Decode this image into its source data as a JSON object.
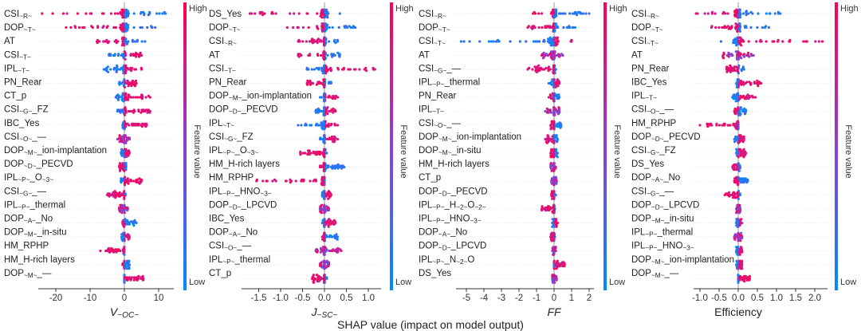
{
  "chart_data": {
    "type": "scatter",
    "subtype": "shap-beeswarm",
    "common_xlabel": "SHAP value (impact on model output)",
    "colorbar": {
      "title": "Feature value",
      "high": "High",
      "low": "Low",
      "high_color": "#ff0052",
      "mid_color": "#8c3fd6",
      "low_color": "#008bfb"
    },
    "panels": [
      {
        "xlabel": "V~OC~",
        "xlabel_italic": true,
        "xlim": [
          -26,
          14
        ],
        "ticks": [
          -20,
          -10,
          0,
          10
        ],
        "tick_labels": [
          "-20",
          "-10",
          "0",
          "10"
        ],
        "features": [
          {
            "label": "CSI~R~",
            "range": [
              -24,
              12
            ],
            "high_side": "neg"
          },
          {
            "label": "DOP~T~",
            "range": [
              -17,
              9
            ],
            "high_side": "neg"
          },
          {
            "label": "AT",
            "range": [
              -8,
              6
            ],
            "high_side": "neg"
          },
          {
            "label": "CSI~T~",
            "range": [
              -4.5,
              5
            ],
            "high_side": "pos"
          },
          {
            "label": "IPL~T~",
            "range": [
              -6,
              5
            ],
            "high_side": "pos"
          },
          {
            "label": "PN_Rear",
            "range": [
              -1.5,
              3.5
            ],
            "high_side": "pos"
          },
          {
            "label": "CT_p",
            "range": [
              -2.5,
              7.5
            ],
            "high_side": "pos"
          },
          {
            "label": "CSI~G~_FZ",
            "range": [
              -2,
              7.5
            ],
            "high_side": "pos"
          },
          {
            "label": "IBC_Yes",
            "range": [
              -0.5,
              6.5
            ],
            "high_side": "pos"
          },
          {
            "label": "CSI~O~_—",
            "range": [
              -2,
              1.5
            ],
            "high_side": "mix"
          },
          {
            "label": "DOP~M~_ion-implantation",
            "range": [
              -1,
              1.5
            ],
            "high_side": "pos"
          },
          {
            "label": "DOP~D~_PECVD",
            "range": [
              -1.5,
              0.5
            ],
            "high_side": "neg"
          },
          {
            "label": "IPL~P~_O~3~",
            "range": [
              -1,
              5
            ],
            "high_side": "pos"
          },
          {
            "label": "CSI~G~_—",
            "range": [
              -5,
              0.3
            ],
            "high_side": "neg"
          },
          {
            "label": "IPL~P~_thermal",
            "range": [
              -1.5,
              1
            ],
            "high_side": "mix"
          },
          {
            "label": "DOP~A~_No",
            "range": [
              -0.5,
              3.5
            ],
            "high_side": "neg"
          },
          {
            "label": "DOP~M~_in-situ",
            "range": [
              -0.8,
              1.5
            ],
            "high_side": "pos"
          },
          {
            "label": "HM_RPHP",
            "range": [
              -7,
              0
            ],
            "high_side": "neg"
          },
          {
            "label": "HM_H-rich layers",
            "range": [
              -0.5,
              1.5
            ],
            "high_side": "neg"
          },
          {
            "label": "DOP~M~_—",
            "range": [
              0,
              5.5
            ],
            "high_side": "pos"
          }
        ]
      },
      {
        "xlabel": "J~SC~",
        "xlabel_italic": true,
        "xlim": [
          -1.85,
          1.35
        ],
        "ticks": [
          -1.5,
          -1.0,
          -0.5,
          0.0,
          0.5,
          1.0
        ],
        "tick_labels": [
          "-1.5",
          "-1.0",
          "-0.5",
          "0.0",
          "0.5",
          "1.0"
        ],
        "features": [
          {
            "label": "DS_Yes",
            "range": [
              -1.7,
              0.35
            ],
            "high_side": "neg"
          },
          {
            "label": "DOP~T~",
            "range": [
              -0.85,
              0.7
            ],
            "high_side": "neg"
          },
          {
            "label": "CSI~R~",
            "range": [
              -0.6,
              0.3
            ],
            "high_side": "neg"
          },
          {
            "label": "AT",
            "range": [
              -0.6,
              0.35
            ],
            "high_side": "neg"
          },
          {
            "label": "CSI~T~",
            "range": [
              -0.4,
              1.15
            ],
            "high_side": "pos"
          },
          {
            "label": "PN_Rear",
            "range": [
              -0.4,
              0.15
            ],
            "high_side": "neg"
          },
          {
            "label": "DOP~M~_ion-implantation",
            "range": [
              -0.1,
              0.3
            ],
            "high_side": "pos"
          },
          {
            "label": "DOP~D~_PECVD",
            "range": [
              -0.2,
              0.25
            ],
            "high_side": "pos"
          },
          {
            "label": "IPL~T~",
            "range": [
              -0.6,
              0.3
            ],
            "high_side": "pos"
          },
          {
            "label": "CSI~G~_FZ",
            "range": [
              -0.1,
              0.3
            ],
            "high_side": "pos"
          },
          {
            "label": "IPL~P~_O~3~",
            "range": [
              -0.55,
              0.05
            ],
            "high_side": "neg"
          },
          {
            "label": "HM_H-rich layers",
            "range": [
              -0.1,
              0.45
            ],
            "high_side": "neg"
          },
          {
            "label": "HM_RPHP",
            "range": [
              -1.55,
              0
            ],
            "high_side": "neg"
          },
          {
            "label": "IPL~P~_HNO~3~",
            "range": [
              -0.05,
              0.15
            ],
            "high_side": "pos"
          },
          {
            "label": "DOP~D~_LPCVD",
            "range": [
              -0.1,
              0.1
            ],
            "high_side": "mix"
          },
          {
            "label": "IBC_Yes",
            "range": [
              -0.05,
              0.25
            ],
            "high_side": "pos"
          },
          {
            "label": "DOP~A~_No",
            "range": [
              -0.05,
              0.3
            ],
            "high_side": "neg"
          },
          {
            "label": "CSI~O~_—",
            "range": [
              -0.2,
              0.38
            ],
            "high_side": "mix"
          },
          {
            "label": "IPL~P~_thermal",
            "range": [
              -0.1,
              0.1
            ],
            "high_side": "mix"
          },
          {
            "label": "CT_p",
            "range": [
              -0.28,
              0.05
            ],
            "high_side": "neg"
          }
        ]
      },
      {
        "xlabel": "FF",
        "xlabel_italic": true,
        "xlim": [
          -5.6,
          2.3
        ],
        "ticks": [
          -5,
          -4,
          -3,
          -2,
          -1,
          0,
          1,
          2
        ],
        "tick_labels": [
          "-5",
          "-4",
          "-3",
          "-2",
          "-1",
          "0",
          "1",
          "2"
        ],
        "features": [
          {
            "label": "CSI~R~",
            "range": [
              -1.2,
              2
            ],
            "high_side": "neg"
          },
          {
            "label": "DOP~T~",
            "range": [
              -1.5,
              1.2
            ],
            "high_side": "neg"
          },
          {
            "label": "CSI~T~",
            "range": [
              -5.3,
              1
            ],
            "high_side": "pos"
          },
          {
            "label": "AT",
            "range": [
              -0.7,
              0.5
            ],
            "high_side": "mix"
          },
          {
            "label": "CSI~G~_—",
            "range": [
              -1.5,
              0.1
            ],
            "high_side": "neg"
          },
          {
            "label": "IPL~P~_thermal",
            "range": [
              -0.3,
              0.3
            ],
            "high_side": "pos"
          },
          {
            "label": "PN_Rear",
            "range": [
              -0.3,
              0.3
            ],
            "high_side": "neg"
          },
          {
            "label": "IPL~T~",
            "range": [
              -0.5,
              0.3
            ],
            "high_side": "mix"
          },
          {
            "label": "CSI~O~_—",
            "range": [
              -0.2,
              0.4
            ],
            "high_side": "neg"
          },
          {
            "label": "DOP~M~_ion-implantation",
            "range": [
              -0.5,
              0.2
            ],
            "high_side": "neg"
          },
          {
            "label": "DOP~M~_in-situ",
            "range": [
              -0.2,
              0.2
            ],
            "high_side": "neg"
          },
          {
            "label": "HM_H-rich layers",
            "range": [
              -0.2,
              0.1
            ],
            "high_side": "mix"
          },
          {
            "label": "CT_p",
            "range": [
              -0.15,
              0.15
            ],
            "high_side": "mix"
          },
          {
            "label": "DOP~D~_PECVD",
            "range": [
              -0.15,
              0.1
            ],
            "high_side": "neg"
          },
          {
            "label": "IPL~P~_H~2~O~2~",
            "range": [
              -0.7,
              0.05
            ],
            "high_side": "neg"
          },
          {
            "label": "IPL~P~_HNO~3~",
            "range": [
              -0.1,
              0.2
            ],
            "high_side": "pos"
          },
          {
            "label": "DOP~A~_No",
            "range": [
              -0.2,
              0.05
            ],
            "high_side": "neg"
          },
          {
            "label": "DOP~D~_LPCVD",
            "range": [
              -0.1,
              0.1
            ],
            "high_side": "mix"
          },
          {
            "label": "IPL~P~_N~2~O",
            "range": [
              0,
              0.6
            ],
            "high_side": "pos"
          },
          {
            "label": "DS_Yes",
            "range": [
              -0.1,
              0.15
            ],
            "high_side": "mix"
          }
        ]
      },
      {
        "xlabel": "Efficiency",
        "xlabel_italic": false,
        "xlim": [
          -1.2,
          2.4
        ],
        "ticks": [
          -1.0,
          -0.5,
          0.0,
          0.5,
          1.0,
          1.5,
          2.0
        ],
        "tick_labels": [
          "-1.0",
          "-0.5",
          "0.0",
          "0.5",
          "1.0",
          "1.5",
          "2.0"
        ],
        "features": [
          {
            "label": "CSI~R~",
            "range": [
              -1.1,
              1.1
            ],
            "high_side": "neg"
          },
          {
            "label": "DOP~T~",
            "range": [
              -0.7,
              0.8
            ],
            "high_side": "neg"
          },
          {
            "label": "CSI~T~",
            "range": [
              -0.45,
              2.2
            ],
            "high_side": "pos"
          },
          {
            "label": "AT",
            "range": [
              -0.4,
              0.4
            ],
            "high_side": "mix"
          },
          {
            "label": "PN_Rear",
            "range": [
              -0.3,
              0.15
            ],
            "high_side": "neg"
          },
          {
            "label": "IBC_Yes",
            "range": [
              -0.05,
              0.6
            ],
            "high_side": "pos"
          },
          {
            "label": "IPL~T~",
            "range": [
              -0.15,
              0.45
            ],
            "high_side": "pos"
          },
          {
            "label": "CSI~O~_—",
            "range": [
              -0.1,
              0.2
            ],
            "high_side": "neg"
          },
          {
            "label": "HM_RPHP",
            "range": [
              -1,
              0
            ],
            "high_side": "neg"
          },
          {
            "label": "DOP~D~_PECVD",
            "range": [
              -0.1,
              0.15
            ],
            "high_side": "pos"
          },
          {
            "label": "CSI~G~_FZ",
            "range": [
              -0.05,
              0.2
            ],
            "high_side": "pos"
          },
          {
            "label": "DS_Yes",
            "range": [
              -0.15,
              0.05
            ],
            "high_side": "neg"
          },
          {
            "label": "DOP~A~_No",
            "range": [
              -0.1,
              0.25
            ],
            "high_side": "neg"
          },
          {
            "label": "CSI~G~_—",
            "range": [
              -0.35,
              0.05
            ],
            "high_side": "neg"
          },
          {
            "label": "DOP~D~_LPCVD",
            "range": [
              -0.05,
              0.05
            ],
            "high_side": "mix"
          },
          {
            "label": "DOP~M~_in-situ",
            "range": [
              -0.05,
              0.1
            ],
            "high_side": "pos"
          },
          {
            "label": "IPL~P~_thermal",
            "range": [
              -0.1,
              0.1
            ],
            "high_side": "mix"
          },
          {
            "label": "IPL~P~_HNO~3~",
            "range": [
              -0.05,
              0.1
            ],
            "high_side": "pos"
          },
          {
            "label": "DOP~M~_ion-implantation",
            "range": [
              -0.05,
              0.1
            ],
            "high_side": "pos"
          },
          {
            "label": "DOP~M~_—",
            "range": [
              0,
              0.3
            ],
            "high_side": "pos"
          }
        ]
      }
    ]
  }
}
